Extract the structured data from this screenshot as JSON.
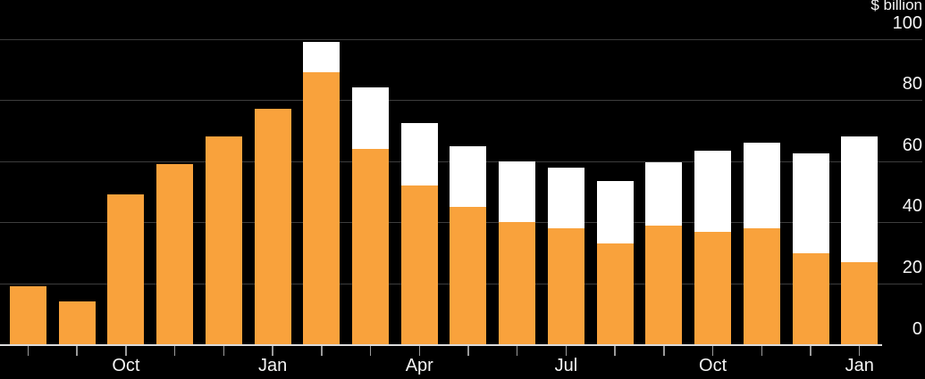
{
  "chart_data": {
    "type": "bar",
    "stacked": true,
    "title": "",
    "xlabel": "",
    "ylabel": "$ billion",
    "ylim": [
      0,
      100
    ],
    "yticks": [
      0,
      20,
      40,
      60,
      80,
      100
    ],
    "grid": true,
    "legend": false,
    "legend_position": "none",
    "x_tick_labels": [
      "",
      "",
      "Oct",
      "",
      "",
      "Jan",
      "",
      "",
      "Apr",
      "",
      "",
      "Jul",
      "",
      "",
      "Oct",
      "",
      "",
      "Jan"
    ],
    "series": [
      {
        "name": "orange-segment",
        "color": "#F9A23C",
        "values": [
          19,
          14,
          49,
          59,
          68,
          77,
          89,
          64,
          52,
          45,
          40,
          38,
          33,
          39,
          37,
          38,
          30,
          27
        ]
      },
      {
        "name": "white-segment",
        "color": "#FFFFFF",
        "values": [
          0,
          0,
          0,
          0,
          0,
          0,
          10,
          20,
          20.5,
          20,
          20,
          20,
          20.5,
          20.5,
          26.5,
          28,
          32.5,
          41
        ]
      }
    ]
  },
  "style": {
    "background": "#000000",
    "gridline": "#3D3D3D",
    "axis_line": "#DCDCDC",
    "tick_mark": "#9A9A9A",
    "text": "#F5F5F5"
  }
}
